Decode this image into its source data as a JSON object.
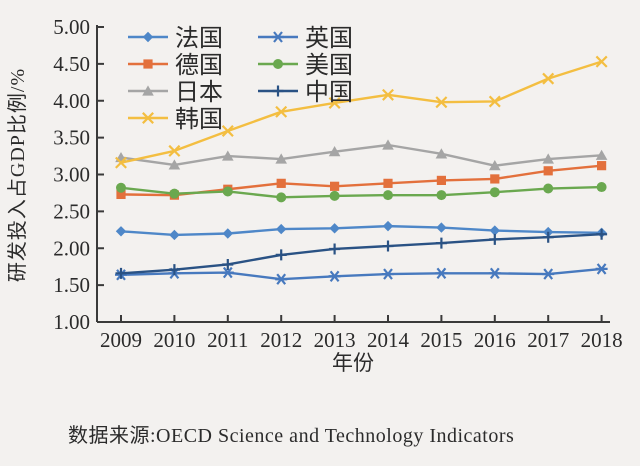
{
  "chart_data": {
    "type": "line",
    "x": [
      2009,
      2010,
      2011,
      2012,
      2013,
      2014,
      2015,
      2016,
      2017,
      2018
    ],
    "xlabel": "年份",
    "ylabel": "研发投入占GDP比例/%",
    "ylim": [
      1.0,
      5.0
    ],
    "ytick_step": 0.5,
    "ytick_labels": [
      "5.00",
      "4.50",
      "4.00",
      "3.50",
      "3.00",
      "2.50",
      "2.00",
      "1.50",
      "1.00"
    ],
    "grid": false,
    "legend_position": "top-left-inside",
    "series": [
      {
        "id": "france",
        "name": "法国",
        "marker": "diamond",
        "color": "#4E87C8",
        "values": [
          2.23,
          2.18,
          2.2,
          2.26,
          2.27,
          2.3,
          2.28,
          2.24,
          2.22,
          2.21
        ]
      },
      {
        "id": "germany",
        "name": "德国",
        "marker": "square",
        "color": "#E3703C",
        "values": [
          2.73,
          2.72,
          2.8,
          2.88,
          2.84,
          2.88,
          2.92,
          2.94,
          3.05,
          3.12
        ]
      },
      {
        "id": "japan",
        "name": "日本",
        "marker": "triangle",
        "color": "#A5A5A5",
        "values": [
          3.23,
          3.13,
          3.25,
          3.21,
          3.31,
          3.4,
          3.28,
          3.12,
          3.21,
          3.26
        ]
      },
      {
        "id": "korea",
        "name": "韩国",
        "marker": "xmark",
        "color": "#F3BE41",
        "values": [
          3.16,
          3.32,
          3.59,
          3.85,
          3.97,
          4.08,
          3.98,
          3.99,
          4.3,
          4.53
        ]
      },
      {
        "id": "uk",
        "name": "英国",
        "marker": "asterisk",
        "color": "#4779BE",
        "values": [
          1.64,
          1.66,
          1.67,
          1.58,
          1.62,
          1.65,
          1.66,
          1.66,
          1.65,
          1.72
        ]
      },
      {
        "id": "usa",
        "name": "美国",
        "marker": "circle",
        "color": "#6AA84F",
        "values": [
          2.82,
          2.74,
          2.77,
          2.69,
          2.71,
          2.72,
          2.72,
          2.76,
          2.81,
          2.83
        ]
      },
      {
        "id": "china",
        "name": "中国",
        "marker": "plus",
        "color": "#2A5284",
        "values": [
          1.66,
          1.71,
          1.78,
          1.91,
          1.99,
          2.03,
          2.07,
          2.12,
          2.15,
          2.19
        ]
      }
    ],
    "legend_columns": [
      [
        "france",
        "germany",
        "japan",
        "korea"
      ],
      [
        "uk",
        "usa",
        "china"
      ]
    ],
    "caption": "数据来源:OECD Science and Technology Indicators"
  },
  "axis_color": "#3a3a3a",
  "text_color": "#2b2b2b"
}
